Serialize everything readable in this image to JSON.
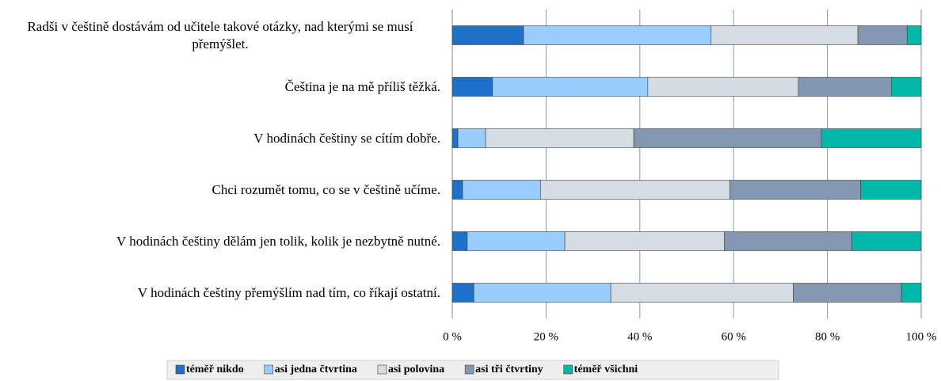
{
  "chart_data": {
    "type": "stacked_bar_horizontal",
    "categories": [
      "Radši v češtině dostávám od učitele takové otázky, nad kterými se musí přemýšlet.",
      "Čeština je na mě příliš těžká.",
      "V hodinách češtiny se cítím dobře.",
      "Chci rozumět tomu, co se v češtině učíme.",
      "V hodinách češtiny dělám jen tolik, kolik je nezbytně nutné.",
      "V hodinách češtiny přemýšlím nad tím, co říkají ostatní."
    ],
    "series": [
      {
        "name": "téměř nikdo",
        "color": "#1f70c8",
        "values": [
          15.2,
          8.6,
          1.2,
          2.2,
          3.2,
          4.6
        ]
      },
      {
        "name": "asi jedna čtvrtina",
        "color": "#99ccff",
        "values": [
          40.0,
          33.1,
          5.9,
          16.6,
          20.8,
          29.2
        ]
      },
      {
        "name": "asi polovina",
        "color": "#d6dce4",
        "values": [
          31.3,
          32.1,
          31.6,
          40.4,
          34.0,
          38.9
        ]
      },
      {
        "name": "asi tři čtvrtiny",
        "color": "#8497b0",
        "values": [
          10.5,
          19.9,
          40.0,
          27.9,
          27.2,
          23.1
        ]
      },
      {
        "name": "téměř všichni",
        "color": "#00b8a9",
        "values": [
          3.0,
          6.3,
          21.3,
          12.9,
          14.8,
          4.2
        ]
      }
    ],
    "xlim": [
      0,
      100
    ],
    "xticks": [
      {
        "value": 0,
        "label": "0 %"
      },
      {
        "value": 20,
        "label": "20 %"
      },
      {
        "value": 40,
        "label": "40 %"
      },
      {
        "value": 60,
        "label": "60 %"
      },
      {
        "value": 80,
        "label": "80 %"
      },
      {
        "value": 100,
        "label": "100 %"
      }
    ],
    "grid": true,
    "legend": "bottom"
  }
}
